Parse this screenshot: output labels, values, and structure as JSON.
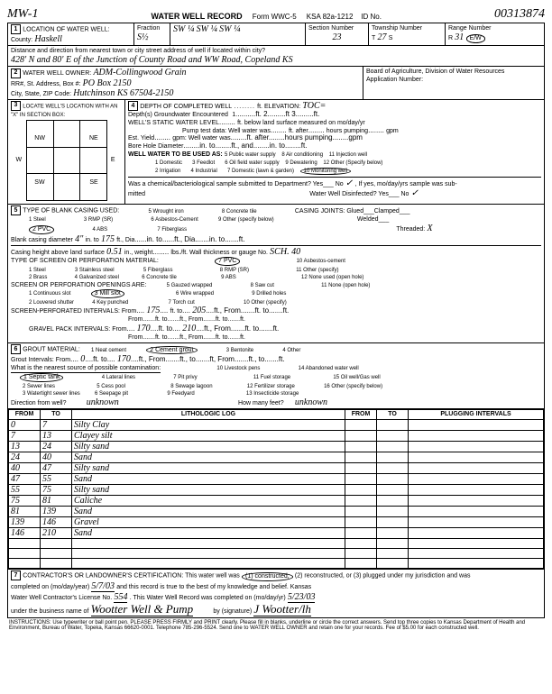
{
  "header": {
    "mw": "MW-1",
    "title": "WATER WELL RECORD",
    "form": "Form WWC-5",
    "ksa": "KSA 82a-1212",
    "id_label": "ID No.",
    "id_value": "00313874"
  },
  "section1": {
    "label": "LOCATION OF WATER WELL:",
    "county_label": "County:",
    "county": "Haskell",
    "fraction_label": "Fraction",
    "fraction": "S½",
    "q1": "SW ¼",
    "q2": "SW ¼",
    "q3": "SW ¼",
    "section_label": "Section Number",
    "section": "23",
    "township_label": "Township Number",
    "township_t": "T",
    "township": "27",
    "township_s": "S",
    "range_label": "Range Number",
    "range_r": "R",
    "range": "31",
    "range_ew": "E/W",
    "distance_label": "Distance and direction from nearest town or city street address of well if located within city?",
    "distance": "428' N and 80' E of the Junction of County Road and WW Road, Copeland KS"
  },
  "section2": {
    "label": "WATER WELL OWNER:",
    "owner": "ADM-Collingwood Grain",
    "rr_label": "RR#, St. Address, Box #:",
    "rr": "PO Box 2150",
    "city_label": "City, State, ZIP Code:",
    "city": "Hutchinson KS 67504-2150",
    "board": "Board of Agriculture, Division of Water Resources",
    "app_label": "Application Number:"
  },
  "section3": {
    "label": "LOCATE WELL'S LOCATION WITH AN \"X\" IN SECTION BOX:",
    "nw": "NW",
    "ne": "NE",
    "sw": "SW",
    "se": "SE",
    "w": "W",
    "e": "E",
    "n": "1 Mile",
    "s": "1 Mile"
  },
  "section4": {
    "label": "DEPTH OF COMPLETED WELL",
    "elevation_label": "ft.  ELEVATION:",
    "elevation": "TOC=",
    "depths_label": "Depth(s) Groundwater Encountered",
    "d1": "1.",
    "d2": "2.",
    "d3": "ft 3.",
    "static_label": "WELL'S STATIC WATER LEVEL",
    "static_unit": "ft. below land surface measured on mo/day/yr",
    "pump_label": "Pump test data: Well water was",
    "pump_after": "ft. after",
    "pump_hours": "hours pumping",
    "pump_gpm": "gpm",
    "yield_label": "Est. Yield",
    "yield_gpm": "gpm: Well water was",
    "bore_label": "Bore Hole Diameter",
    "bore_in": "in. to",
    "bore_ft": "ft., and",
    "bore_into": "in. to",
    "use_label": "WELL WATER TO BE USED AS:",
    "uses": [
      "1 Domestic",
      "2 Irrigation",
      "3 Feedlot",
      "4 Industrial",
      "5 Public water supply",
      "6 Oil field water supply",
      "7 Domestic (lawn & garden)",
      "8 Air conditioning",
      "9 Dewatering",
      "10 Monitoring well",
      "11 Injection well",
      "12 Other (Specify below)"
    ],
    "sampled_label": "Was a chemical/bacteriological sample submitted to Department? Yes___ No",
    "sampled_check": "✓",
    "sampled_if": ", If yes, mo/day/yrs sample was sub-",
    "mitted": "mitted",
    "disinfect_label": "Water Well Disinfected?  Yes___  No",
    "disinfect": "✓"
  },
  "section5": {
    "label": "TYPE OF BLANK CASING USED:",
    "types": [
      "1 Steel",
      "2 PVC",
      "3 RMP (SR)",
      "4 ABS",
      "5 Wrought iron",
      "6 Asbestos-Cement",
      "7 Fiberglass",
      "8 Concrete tile",
      "9 Other (specify below)"
    ],
    "joints_label": "CASING JOINTS: Glued___Clamped___",
    "welded": "Welded___",
    "threaded": "Threaded:",
    "threaded_val": "X",
    "diameter_label": "Blank casing diameter",
    "diameter": "4\"",
    "dia_in": "in. to",
    "dia_to": "175",
    "dia_ft": "ft., Dia.",
    "dia_in2": "in. to",
    "dia_ft2": "ft., Dia.",
    "dia_in3": "in. to",
    "dia_ft3": "ft.",
    "height_label": "Casing height above land surface",
    "height": "0.51",
    "height_in": "in., weight",
    "height_lbs": "lbs./ft. Wall thickness or gauge No.",
    "gauge": "SCH. 40",
    "perf_label": "TYPE OF SCREEN OR PERFORATION MATERIAL:",
    "perf_types": [
      "1 Steel",
      "2 Brass",
      "3 Stainless steel",
      "4 Galvanized steel",
      "5 Fiberglass",
      "6 Concrete tile",
      "7 PVC",
      "8 RMP (SR)",
      "9 ABS",
      "10 Asbestos-cement",
      "11 Other (specify)",
      "12 None used (open hole)"
    ],
    "openings_label": "SCREEN OR PERFORATION OPENINGS ARE:",
    "opening_types": [
      "1 Continuous slot",
      "2 Louvered shutter",
      "3 Mill slot",
      "4 Key punched",
      "5 Gauzed wrapped",
      "6 Wire wrapped",
      "7 Torch cut",
      "8 Saw cut",
      "9 Drilled holes",
      "10 Other (specify)",
      "11 None (open hole)"
    ],
    "screen_label": "SCREEN-PERFORATED INTERVALS: From",
    "screen_from1": "175",
    "screen_to1": "205",
    "gravel_label": "GRAVEL PACK INTERVALS: From",
    "gravel_from1": "170",
    "gravel_to1": "210",
    "ft_to": "ft. to",
    "ft_from": "ft., From",
    "ft": "ft."
  },
  "section6": {
    "label": "GROUT MATERIAL:",
    "types": [
      "1 Neat cement",
      "2 Cement grout",
      "3 Bentonite",
      "4 Other"
    ],
    "grout_label": "Grout Intervals: From",
    "grout_from": "0",
    "grout_to": "170",
    "contam_label": "What is the nearest source of possible contamination:",
    "contam_types": [
      "1 Septic tank",
      "2 Sewer lines",
      "3 Watertight sewer lines",
      "4 Lateral lines",
      "5 Cess pool",
      "6 Seepage pit",
      "7 Pit privy",
      "8 Sewage lagoon",
      "9 Feedyard",
      "10 Livestock pens",
      "11 Fuel storage",
      "12 Fertilizer storage",
      "13 Insecticide storage",
      "14 Abandoned water well",
      "15 Oil well/Gas well",
      "16 Other (specify below)"
    ],
    "direction_label": "Direction from well?",
    "direction": "unknown",
    "feet_label": "How many feet?",
    "feet": "unknown"
  },
  "log": {
    "from_hdr": "FROM",
    "to_hdr": "TO",
    "lith_hdr": "LITHOLOGIC LOG",
    "plug_hdr": "PLUGGING INTERVALS",
    "rows": [
      {
        "from": "0",
        "to": "7",
        "lith": "Silty Clay"
      },
      {
        "from": "7",
        "to": "13",
        "lith": "Clayey silt"
      },
      {
        "from": "13",
        "to": "24",
        "lith": "Silty sand"
      },
      {
        "from": "24",
        "to": "40",
        "lith": "Sand"
      },
      {
        "from": "40",
        "to": "47",
        "lith": "Silty sand"
      },
      {
        "from": "47",
        "to": "55",
        "lith": "Sand"
      },
      {
        "from": "55",
        "to": "75",
        "lith": "Silty sand"
      },
      {
        "from": "75",
        "to": "81",
        "lith": "Caliche"
      },
      {
        "from": "81",
        "to": "139",
        "lith": "Sand"
      },
      {
        "from": "139",
        "to": "146",
        "lith": "Gravel"
      },
      {
        "from": "146",
        "to": "210",
        "lith": "Sand"
      },
      {
        "from": "",
        "to": "",
        "lith": ""
      },
      {
        "from": "",
        "to": "",
        "lith": ""
      },
      {
        "from": "",
        "to": "",
        "lith": ""
      }
    ]
  },
  "section7": {
    "label": "CONTRACTOR'S OR LANDOWNER'S CERTIFICATION: This water well was",
    "opt1": "(1) constructed,",
    "opt2": "(2) reconstructed, or (3) plugged under my jurisdiction and was",
    "completed_label": "completed on (mo/day/year)",
    "completed": "5/7/03",
    "true_label": "and this record is true to the best of my knowledge and belief. Kansas",
    "license_label": "Water Well Contractor's License No.",
    "license": "554",
    "record_label": ". This Water Well Record was completed on (mo/day/yr)",
    "record_date": "5/23/03",
    "business_label": "under the business name of",
    "business": "Wootter Well & Pump",
    "sig_label": "by (signature)",
    "signature": "J Wootter/lh"
  },
  "instructions": "INSTRUCTIONS: Use typewriter or ball point pen. PLEASE PRESS FIRMLY and PRINT clearly. Please fill in blanks, underline or circle the correct answers. Send top three copies to Kansas Department of Health and Environment, Bureau of Water, Topeka, Kansas 66620-0001. Telephone 785-296-5524. Send one to WATER WELL OWNER and retain one for your records. Fee of $5.00 for each constructed well."
}
